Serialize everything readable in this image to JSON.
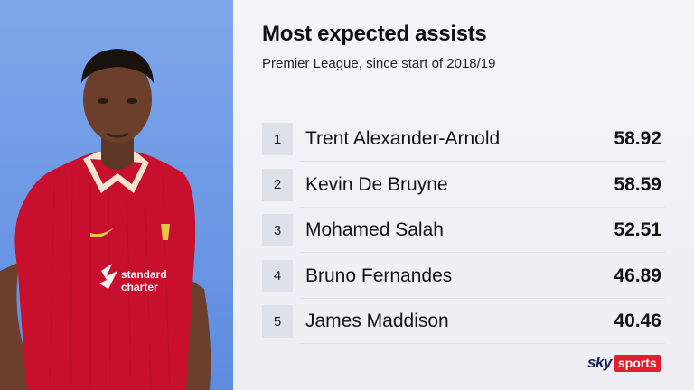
{
  "graphic": {
    "title": "Most expected assists",
    "subtitle": "Premier League, since start of 2018/19"
  },
  "rows": [
    {
      "rank": "1",
      "name": "Trent Alexander-Arnold",
      "value": "58.92"
    },
    {
      "rank": "2",
      "name": "Kevin De Bruyne",
      "value": "58.59"
    },
    {
      "rank": "3",
      "name": "Mohamed Salah",
      "value": "52.51"
    },
    {
      "rank": "4",
      "name": "Bruno Fernandes",
      "value": "46.89"
    },
    {
      "rank": "5",
      "name": "James Maddison",
      "value": "40.46"
    }
  ],
  "player_image": {
    "subject": "footballer in red home kit",
    "shirt_text": [
      "standard",
      "charter"
    ]
  },
  "branding": {
    "sky": "sky",
    "sports": "sports"
  },
  "colors": {
    "left_panel": "#6f99e6",
    "kit_red": "#c8102e",
    "sky_red": "#e31d2b",
    "rank_box": "#dde1ea"
  }
}
